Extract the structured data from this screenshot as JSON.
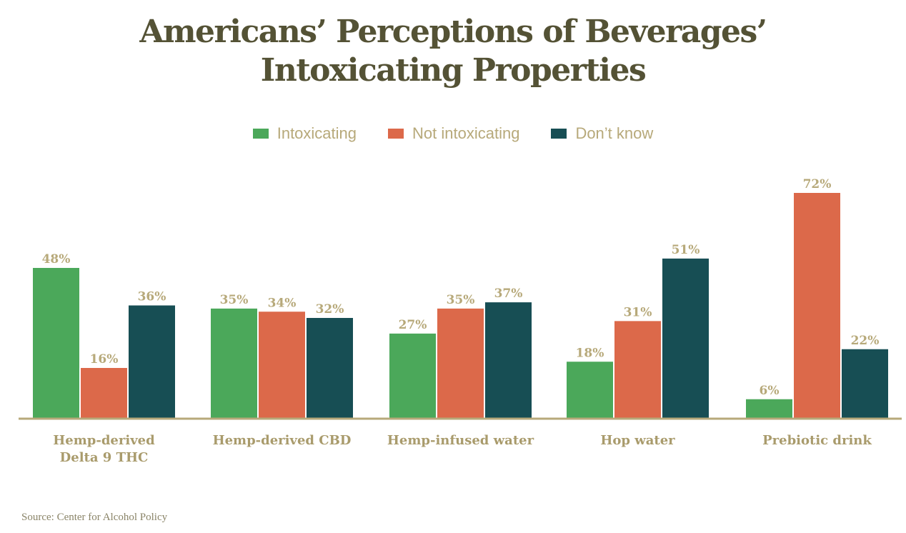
{
  "chart_data": {
    "type": "bar",
    "title_line1": "Americans’ Perceptions of Beverages’",
    "title_line2": "Intoxicating Properties",
    "categories": [
      [
        "Hemp-derived",
        "Delta 9 THC"
      ],
      [
        "Hemp-derived CBD"
      ],
      [
        "Hemp-infused water"
      ],
      [
        "Hop water"
      ],
      [
        "Prebiotic drink"
      ]
    ],
    "series": [
      {
        "name": "Intoxicating",
        "color": "#4ba85a",
        "values": [
          48,
          35,
          27,
          18,
          6
        ]
      },
      {
        "name": "Not intoxicating",
        "color": "#dc694a",
        "values": [
          16,
          34,
          35,
          31,
          72
        ]
      },
      {
        "name": "Don’t know",
        "color": "#174e54",
        "values": [
          36,
          32,
          37,
          51,
          22
        ]
      }
    ],
    "value_suffix": "%",
    "ylim": [
      0,
      72
    ],
    "legend_position": "top-center",
    "grid": false
  },
  "source": "Source: Center for Alcohol Policy"
}
